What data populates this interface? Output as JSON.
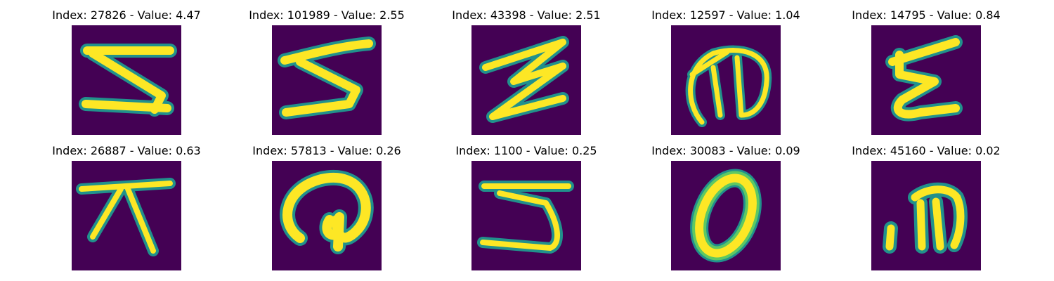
{
  "colors": {
    "background": "#440154",
    "stroke_core": "#fde725",
    "stroke_edge": "#21918c",
    "stroke_mid": "#5ec962"
  },
  "panels": [
    {
      "title": "Index: 27826 - Value: 4.47",
      "glyph": "glyph-5-like-1"
    },
    {
      "title": "Index: 101989 - Value: 2.55",
      "glyph": "glyph-3-like"
    },
    {
      "title": "Index: 43398 - Value: 2.51",
      "glyph": "glyph-z-like"
    },
    {
      "title": "Index: 12597 - Value: 1.04",
      "glyph": "glyph-d-like"
    },
    {
      "title": "Index: 14795 - Value: 0.84",
      "glyph": "glyph-z-small"
    },
    {
      "title": "Index: 26887 - Value: 0.63",
      "glyph": "glyph-pi-like"
    },
    {
      "title": "Index: 57813 - Value: 0.26",
      "glyph": "glyph-curl"
    },
    {
      "title": "Index: 1100 - Value: 0.25",
      "glyph": "glyph-5-like-2"
    },
    {
      "title": "Index: 30083 - Value: 0.09",
      "glyph": "glyph-0"
    },
    {
      "title": "Index: 45160 - Value: 0.02",
      "glyph": "glyph-dot-n"
    }
  ]
}
